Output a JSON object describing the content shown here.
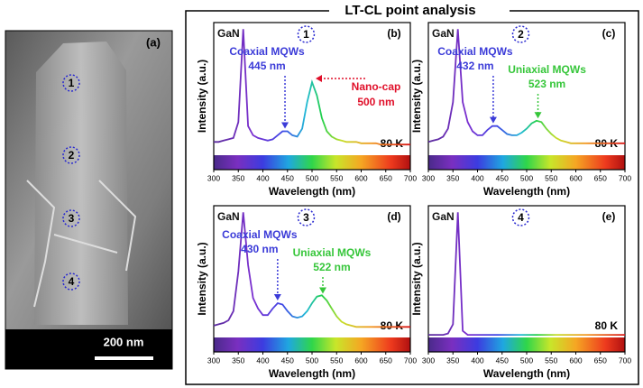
{
  "title": "LT-CL point analysis",
  "image": {
    "label": "(a)",
    "scale_bar": "200 nm",
    "points": [
      "1",
      "2",
      "3",
      "4"
    ]
  },
  "chart_data": [
    {
      "type": "line",
      "panel": "(b)",
      "point": "1",
      "temperature": "80 K",
      "xlabel": "Wavelength (nm)",
      "ylabel": "Intensity (a.u.)",
      "xlim": [
        300,
        700
      ],
      "xticks": [
        300,
        350,
        400,
        450,
        500,
        550,
        600,
        650,
        700
      ],
      "ylim": [
        0,
        1
      ],
      "x": [
        300,
        310,
        320,
        330,
        340,
        350,
        360,
        370,
        380,
        390,
        400,
        410,
        420,
        430,
        440,
        450,
        460,
        470,
        480,
        490,
        500,
        510,
        520,
        530,
        540,
        550,
        560,
        570,
        580,
        590,
        600,
        610,
        620,
        630,
        640,
        650,
        660,
        670,
        680,
        690,
        700
      ],
      "series": [
        {
          "values": [
            0.1,
            0.1,
            0.11,
            0.12,
            0.13,
            0.25,
            0.95,
            0.22,
            0.15,
            0.13,
            0.12,
            0.11,
            0.12,
            0.15,
            0.18,
            0.18,
            0.15,
            0.14,
            0.2,
            0.4,
            0.55,
            0.45,
            0.28,
            0.18,
            0.14,
            0.12,
            0.11,
            0.1,
            0.1,
            0.1,
            0.09,
            0.09,
            0.09,
            0.09,
            0.08,
            0.08,
            0.08,
            0.08,
            0.08,
            0.08,
            0.08
          ]
        }
      ],
      "annotations": [
        {
          "text": "GaN",
          "color": "#111111"
        },
        {
          "lines": [
            "Coaxial MQWs",
            "445 nm"
          ],
          "x": 445,
          "color": "#3b3bd8"
        },
        {
          "lines": [
            "Nano-cap",
            "500 nm"
          ],
          "x": 500,
          "color": "#e0102a"
        }
      ]
    },
    {
      "type": "line",
      "panel": "(c)",
      "point": "2",
      "temperature": "80 K",
      "xlabel": "Wavelength (nm)",
      "ylabel": "Intensity (a.u.)",
      "xlim": [
        300,
        700
      ],
      "xticks": [
        300,
        350,
        400,
        450,
        500,
        550,
        600,
        650,
        700
      ],
      "ylim": [
        0,
        1
      ],
      "x": [
        300,
        310,
        320,
        330,
        340,
        350,
        360,
        370,
        380,
        390,
        400,
        410,
        420,
        430,
        440,
        450,
        460,
        470,
        480,
        490,
        500,
        510,
        520,
        530,
        540,
        550,
        560,
        570,
        580,
        590,
        600,
        610,
        620,
        630,
        640,
        650,
        660,
        670,
        680,
        690,
        700
      ],
      "series": [
        {
          "values": [
            0.1,
            0.11,
            0.12,
            0.14,
            0.2,
            0.4,
            0.95,
            0.4,
            0.25,
            0.18,
            0.15,
            0.15,
            0.19,
            0.22,
            0.22,
            0.19,
            0.16,
            0.15,
            0.15,
            0.17,
            0.2,
            0.24,
            0.26,
            0.25,
            0.2,
            0.16,
            0.13,
            0.11,
            0.1,
            0.09,
            0.09,
            0.09,
            0.09,
            0.09,
            0.09,
            0.09,
            0.09,
            0.09,
            0.09,
            0.09,
            0.09
          ]
        }
      ],
      "annotations": [
        {
          "text": "GaN",
          "color": "#111111"
        },
        {
          "lines": [
            "Coaxial MQWs",
            "432 nm"
          ],
          "x": 432,
          "color": "#3b3bd8"
        },
        {
          "lines": [
            "Uniaxial MQWs",
            "523 nm"
          ],
          "x": 523,
          "color": "#36c63a"
        }
      ]
    },
    {
      "type": "line",
      "panel": "(d)",
      "point": "3",
      "temperature": "80 K",
      "xlabel": "Wavelength (nm)",
      "ylabel": "Intensity (a.u.)",
      "xlim": [
        300,
        700
      ],
      "xticks": [
        300,
        350,
        400,
        450,
        500,
        550,
        600,
        650,
        700
      ],
      "ylim": [
        0,
        1
      ],
      "x": [
        300,
        310,
        320,
        330,
        340,
        350,
        360,
        370,
        380,
        390,
        400,
        410,
        420,
        430,
        440,
        450,
        460,
        470,
        480,
        490,
        500,
        510,
        520,
        530,
        540,
        550,
        560,
        570,
        580,
        590,
        600,
        610,
        620,
        630,
        640,
        650,
        660,
        670,
        680,
        690,
        700
      ],
      "series": [
        {
          "values": [
            0.09,
            0.1,
            0.11,
            0.13,
            0.2,
            0.5,
            0.95,
            0.55,
            0.3,
            0.22,
            0.17,
            0.17,
            0.22,
            0.26,
            0.25,
            0.2,
            0.16,
            0.15,
            0.16,
            0.2,
            0.26,
            0.31,
            0.32,
            0.28,
            0.22,
            0.16,
            0.12,
            0.1,
            0.09,
            0.08,
            0.08,
            0.08,
            0.08,
            0.08,
            0.08,
            0.08,
            0.08,
            0.08,
            0.08,
            0.08,
            0.08
          ]
        }
      ],
      "annotations": [
        {
          "text": "GaN",
          "color": "#111111"
        },
        {
          "lines": [
            "Coaxial MQWs",
            "430 nm"
          ],
          "x": 430,
          "color": "#3b3bd8"
        },
        {
          "lines": [
            "Uniaxial MQWs",
            "522 nm"
          ],
          "x": 522,
          "color": "#36c63a"
        }
      ]
    },
    {
      "type": "line",
      "panel": "(e)",
      "point": "4",
      "temperature": "80 K",
      "xlabel": "Wavelength (nm)",
      "ylabel": "Intensity (a.u.)",
      "xlim": [
        300,
        700
      ],
      "xticks": [
        300,
        350,
        400,
        450,
        500,
        550,
        600,
        650,
        700
      ],
      "ylim": [
        0,
        1
      ],
      "x": [
        300,
        310,
        320,
        330,
        340,
        350,
        360,
        370,
        380,
        390,
        400,
        410,
        420,
        430,
        440,
        450,
        460,
        470,
        480,
        490,
        500,
        510,
        520,
        530,
        540,
        550,
        560,
        570,
        580,
        590,
        600,
        610,
        620,
        630,
        640,
        650,
        660,
        670,
        680,
        690,
        700
      ],
      "series": [
        {
          "values": [
            0.02,
            0.02,
            0.02,
            0.02,
            0.03,
            0.1,
            0.95,
            0.05,
            0.02,
            0.02,
            0.02,
            0.02,
            0.02,
            0.02,
            0.02,
            0.02,
            0.02,
            0.02,
            0.02,
            0.02,
            0.02,
            0.02,
            0.02,
            0.02,
            0.02,
            0.02,
            0.02,
            0.02,
            0.02,
            0.02,
            0.02,
            0.02,
            0.02,
            0.02,
            0.02,
            0.02,
            0.02,
            0.02,
            0.02,
            0.02,
            0.02
          ]
        }
      ],
      "annotations": [
        {
          "text": "GaN",
          "color": "#111111"
        }
      ]
    }
  ]
}
